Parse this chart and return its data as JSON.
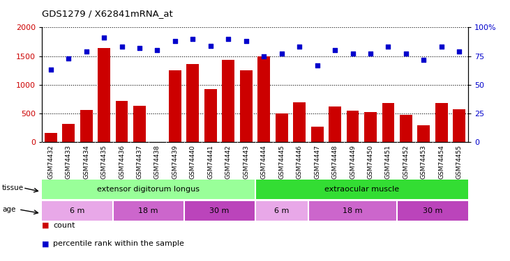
{
  "title": "GDS1279 / X62841mRNA_at",
  "samples": [
    "GSM74432",
    "GSM74433",
    "GSM74434",
    "GSM74435",
    "GSM74436",
    "GSM74437",
    "GSM74438",
    "GSM74439",
    "GSM74440",
    "GSM74441",
    "GSM74442",
    "GSM74443",
    "GSM74444",
    "GSM74445",
    "GSM74446",
    "GSM74447",
    "GSM74448",
    "GSM74449",
    "GSM74450",
    "GSM74451",
    "GSM74452",
    "GSM74453",
    "GSM74454",
    "GSM74455"
  ],
  "counts": [
    160,
    320,
    560,
    1640,
    720,
    630,
    10,
    1250,
    1360,
    920,
    1440,
    1250,
    1500,
    500,
    700,
    270,
    620,
    550,
    520,
    680,
    480,
    290,
    680,
    580
  ],
  "percentiles": [
    63,
    73,
    79,
    91,
    83,
    82,
    80,
    88,
    90,
    84,
    90,
    88,
    75,
    77,
    83,
    67,
    80,
    77,
    77,
    83,
    77,
    72,
    83,
    79
  ],
  "ylim_left": [
    0,
    2000
  ],
  "ylim_right": [
    0,
    100
  ],
  "yticks_left": [
    0,
    500,
    1000,
    1500,
    2000
  ],
  "yticks_right": [
    0,
    25,
    50,
    75,
    100
  ],
  "bar_color": "#cc0000",
  "dot_color": "#0000cc",
  "tissue_groups": [
    {
      "label": "extensor digitorum longus",
      "start": 0,
      "end": 12,
      "color": "#99ff99"
    },
    {
      "label": "extraocular muscle",
      "start": 12,
      "end": 24,
      "color": "#33dd33"
    }
  ],
  "age_groups": [
    {
      "label": "6 m",
      "start": 0,
      "end": 4,
      "color": "#e8a8e8"
    },
    {
      "label": "18 m",
      "start": 4,
      "end": 8,
      "color": "#cc66cc"
    },
    {
      "label": "30 m",
      "start": 8,
      "end": 12,
      "color": "#bb44bb"
    },
    {
      "label": "6 m",
      "start": 12,
      "end": 15,
      "color": "#e8a8e8"
    },
    {
      "label": "18 m",
      "start": 15,
      "end": 20,
      "color": "#cc66cc"
    },
    {
      "label": "30 m",
      "start": 20,
      "end": 24,
      "color": "#bb44bb"
    }
  ],
  "legend_items": [
    {
      "label": "count",
      "color": "#cc0000"
    },
    {
      "label": "percentile rank within the sample",
      "color": "#0000cc"
    }
  ],
  "bg_xtick": "#d0d0d0"
}
